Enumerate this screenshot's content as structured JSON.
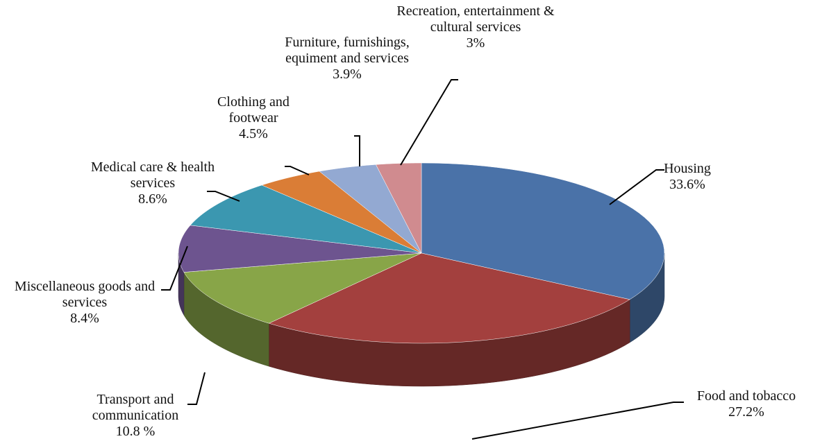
{
  "chart_data": {
    "type": "pie3d",
    "categories": [
      "Housing",
      "Food and tobacco",
      "Transport and communication",
      "Miscellaneous goods and services",
      "Medical care & health services",
      "Clothing and footwear",
      "Furniture, furnishings, equiment and services",
      "Recreation, entertainment & cultural services"
    ],
    "values": [
      33.6,
      27.2,
      10.8,
      8.4,
      8.6,
      4.5,
      3.9,
      3
    ],
    "value_labels": [
      "33.6%",
      "27.2%",
      "10.8 %",
      "8.4%",
      "8.6%",
      "4.5%",
      "3.9%",
      "3%"
    ],
    "colors": [
      "#4a72a8",
      "#a3403e",
      "#88a548",
      "#6d548f",
      "#3b97b0",
      "#da7d36",
      "#93a9d2",
      "#d08b8f"
    ]
  }
}
